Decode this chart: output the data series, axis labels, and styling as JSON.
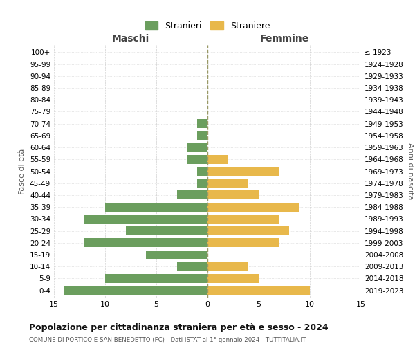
{
  "age_groups": [
    "100+",
    "95-99",
    "90-94",
    "85-89",
    "80-84",
    "75-79",
    "70-74",
    "65-69",
    "60-64",
    "55-59",
    "50-54",
    "45-49",
    "40-44",
    "35-39",
    "30-34",
    "25-29",
    "20-24",
    "15-19",
    "10-14",
    "5-9",
    "0-4"
  ],
  "birth_years": [
    "≤ 1923",
    "1924-1928",
    "1929-1933",
    "1934-1938",
    "1939-1943",
    "1944-1948",
    "1949-1953",
    "1954-1958",
    "1959-1963",
    "1964-1968",
    "1969-1973",
    "1974-1978",
    "1979-1983",
    "1984-1988",
    "1989-1993",
    "1994-1998",
    "1999-2003",
    "2004-2008",
    "2009-2013",
    "2014-2018",
    "2019-2023"
  ],
  "maschi": [
    0,
    0,
    0,
    0,
    0,
    0,
    1,
    1,
    2,
    2,
    1,
    1,
    3,
    10,
    12,
    8,
    12,
    6,
    3,
    10,
    14
  ],
  "femmine": [
    0,
    0,
    0,
    0,
    0,
    0,
    0,
    0,
    0,
    2,
    7,
    4,
    5,
    9,
    7,
    8,
    7,
    0,
    4,
    5,
    10
  ],
  "maschi_color": "#6b9e5e",
  "femmine_color": "#e8b84b",
  "title": "Popolazione per cittadinanza straniera per età e sesso - 2024",
  "subtitle": "COMUNE DI PORTICO E SAN BENEDETTO (FC) - Dati ISTAT al 1° gennaio 2024 - TUTTITALIA.IT",
  "xlabel_left": "Maschi",
  "xlabel_right": "Femmine",
  "ylabel_left": "Fasce di età",
  "ylabel_right": "Anni di nascita",
  "legend_maschi": "Stranieri",
  "legend_femmine": "Straniere",
  "xlim": 15,
  "bar_height": 0.75,
  "background_color": "#ffffff",
  "grid_color": "#d0d0d0"
}
